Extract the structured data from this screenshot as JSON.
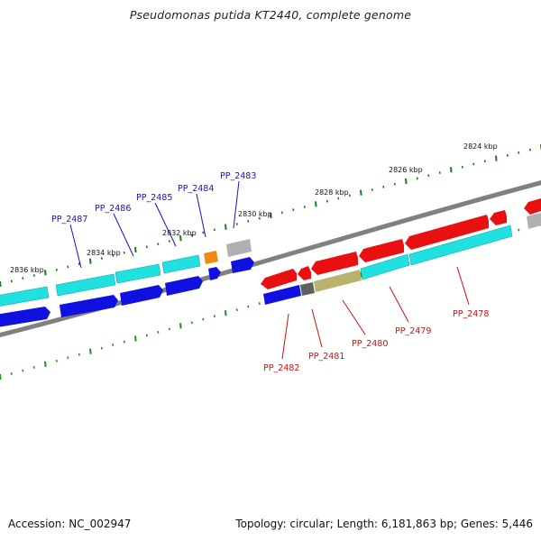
{
  "title": "Pseudomonas putida KT2440, complete genome",
  "footer": {
    "accession": "Accession: NC_002947",
    "summary": "Topology: circular; Length: 6,181,863 bp; Genes: 5,446"
  },
  "colors": {
    "backbone": "#808080",
    "tick_major": "#1a7a1a",
    "tick_minor": "#1f8f1f",
    "cds_forward": "#e81010",
    "cds_reverse": "#1010e0",
    "orf_band": "#20e0e0",
    "trna_orange": "#f08a10",
    "gray_feature": "#b0b0b0",
    "dark_gray": "#606060",
    "olive": "#b8b470",
    "label_blue": "#1010d0",
    "label_red": "#d01010"
  },
  "scale_labels": [
    {
      "text": "2824 kbp"
    },
    {
      "text": "2826 kbp"
    },
    {
      "text": "2828 kbp"
    },
    {
      "text": "2830 kbp"
    },
    {
      "text": "2832 kbp"
    },
    {
      "text": "2834 kbp"
    },
    {
      "text": "2836 kbp"
    }
  ],
  "gene_labels_blue": [
    {
      "text": "PP_2487"
    },
    {
      "text": "PP_2486"
    },
    {
      "text": "PP_2485"
    },
    {
      "text": "PP_2484"
    },
    {
      "text": "PP_2483"
    }
  ],
  "gene_labels_red": [
    {
      "text": "PP_2482"
    },
    {
      "text": "PP_2481"
    },
    {
      "text": "PP_2480"
    },
    {
      "text": "PP_2479"
    },
    {
      "text": "PP_2478"
    }
  ]
}
